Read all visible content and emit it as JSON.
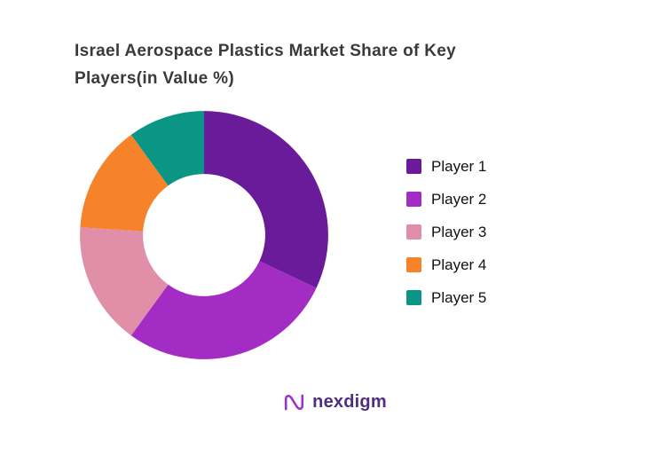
{
  "chart_data": {
    "type": "pie",
    "donut": true,
    "title": "Israel Aerospace Plastics Market Share of Key Players(in Value %)",
    "categories": [
      "Player 1",
      "Player 2",
      "Player 3",
      "Player 4",
      "Player 5"
    ],
    "values": [
      32,
      28,
      16,
      14,
      10
    ],
    "colors": [
      "#6A1B9A",
      "#A32CC4",
      "#E18FA9",
      "#F6822A",
      "#0A9585"
    ],
    "start_angle_deg": 0,
    "direction": "clockwise",
    "legend_position": "right",
    "data_labels": false,
    "background": "#ffffff"
  },
  "footer": {
    "brand": "nexdigm",
    "brand_color": "#4F2D7F",
    "icon_color": "#A02EC9"
  }
}
